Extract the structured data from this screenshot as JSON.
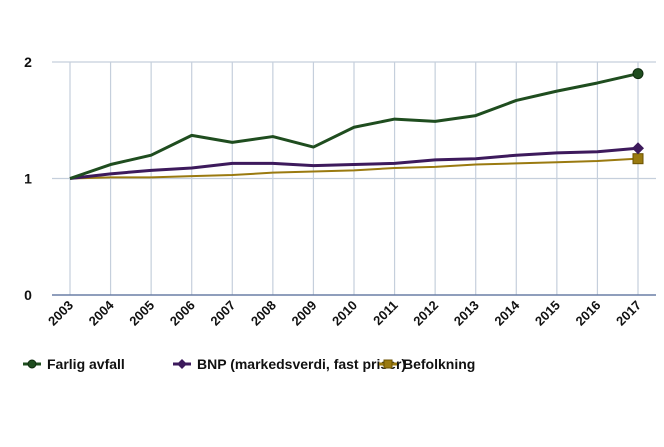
{
  "chart_data": {
    "type": "line",
    "x": [
      "2003",
      "2004",
      "2005",
      "2006",
      "2007",
      "2008",
      "2009",
      "2010",
      "2011",
      "2012",
      "2013",
      "2014",
      "2015",
      "2016",
      "2017"
    ],
    "ylim": [
      0,
      2
    ],
    "yticks": [
      "0",
      "1",
      "2"
    ],
    "grid": true,
    "legend_position": "bottom-left",
    "series": [
      {
        "name": "Farlig avfall",
        "color": "#1f4d1f",
        "marker": "circle",
        "values": [
          1.0,
          1.12,
          1.2,
          1.37,
          1.31,
          1.36,
          1.27,
          1.44,
          1.51,
          1.49,
          1.54,
          1.67,
          1.75,
          1.82,
          1.9
        ]
      },
      {
        "name": "BNP (markedsverdi, fast  priser)",
        "color": "#3d1a5c",
        "marker": "diamond",
        "values": [
          1.0,
          1.04,
          1.07,
          1.09,
          1.13,
          1.13,
          1.11,
          1.12,
          1.13,
          1.16,
          1.17,
          1.2,
          1.22,
          1.23,
          1.26
        ]
      },
      {
        "name": "Befolkning",
        "color": "#9a7a10",
        "marker": "square",
        "values": [
          1.0,
          1.01,
          1.01,
          1.02,
          1.03,
          1.05,
          1.06,
          1.07,
          1.09,
          1.1,
          1.12,
          1.13,
          1.14,
          1.15,
          1.17
        ]
      }
    ]
  }
}
